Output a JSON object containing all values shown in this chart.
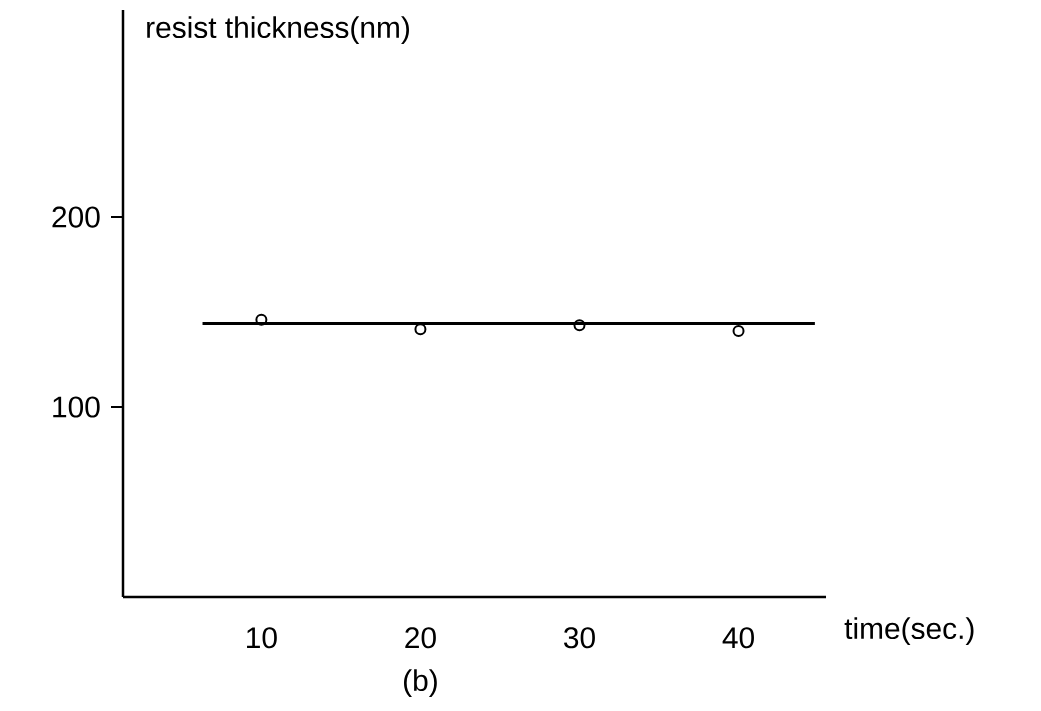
{
  "chart_data": {
    "type": "scatter",
    "ylabel": "resist thickness(nm)",
    "xlabel": "time(sec.)",
    "annotations": [
      "(b)"
    ],
    "xlim": [
      1.3,
      45.5
    ],
    "ylim": [
      0,
      309
    ],
    "xticks": [
      10,
      20,
      30,
      40
    ],
    "yticks": [
      100,
      200
    ],
    "grid": false,
    "marker": "circle",
    "series": [
      {
        "color": "#000000",
        "x": [
          10,
          20,
          30,
          40
        ],
        "values": [
          146,
          141,
          143,
          140
        ]
      },
      {
        "type": "line",
        "color": "#000000",
        "marker": "none",
        "line_style": "solid",
        "x": [
          6.3,
          44.8
        ],
        "values": [
          144,
          144
        ]
      }
    ]
  }
}
